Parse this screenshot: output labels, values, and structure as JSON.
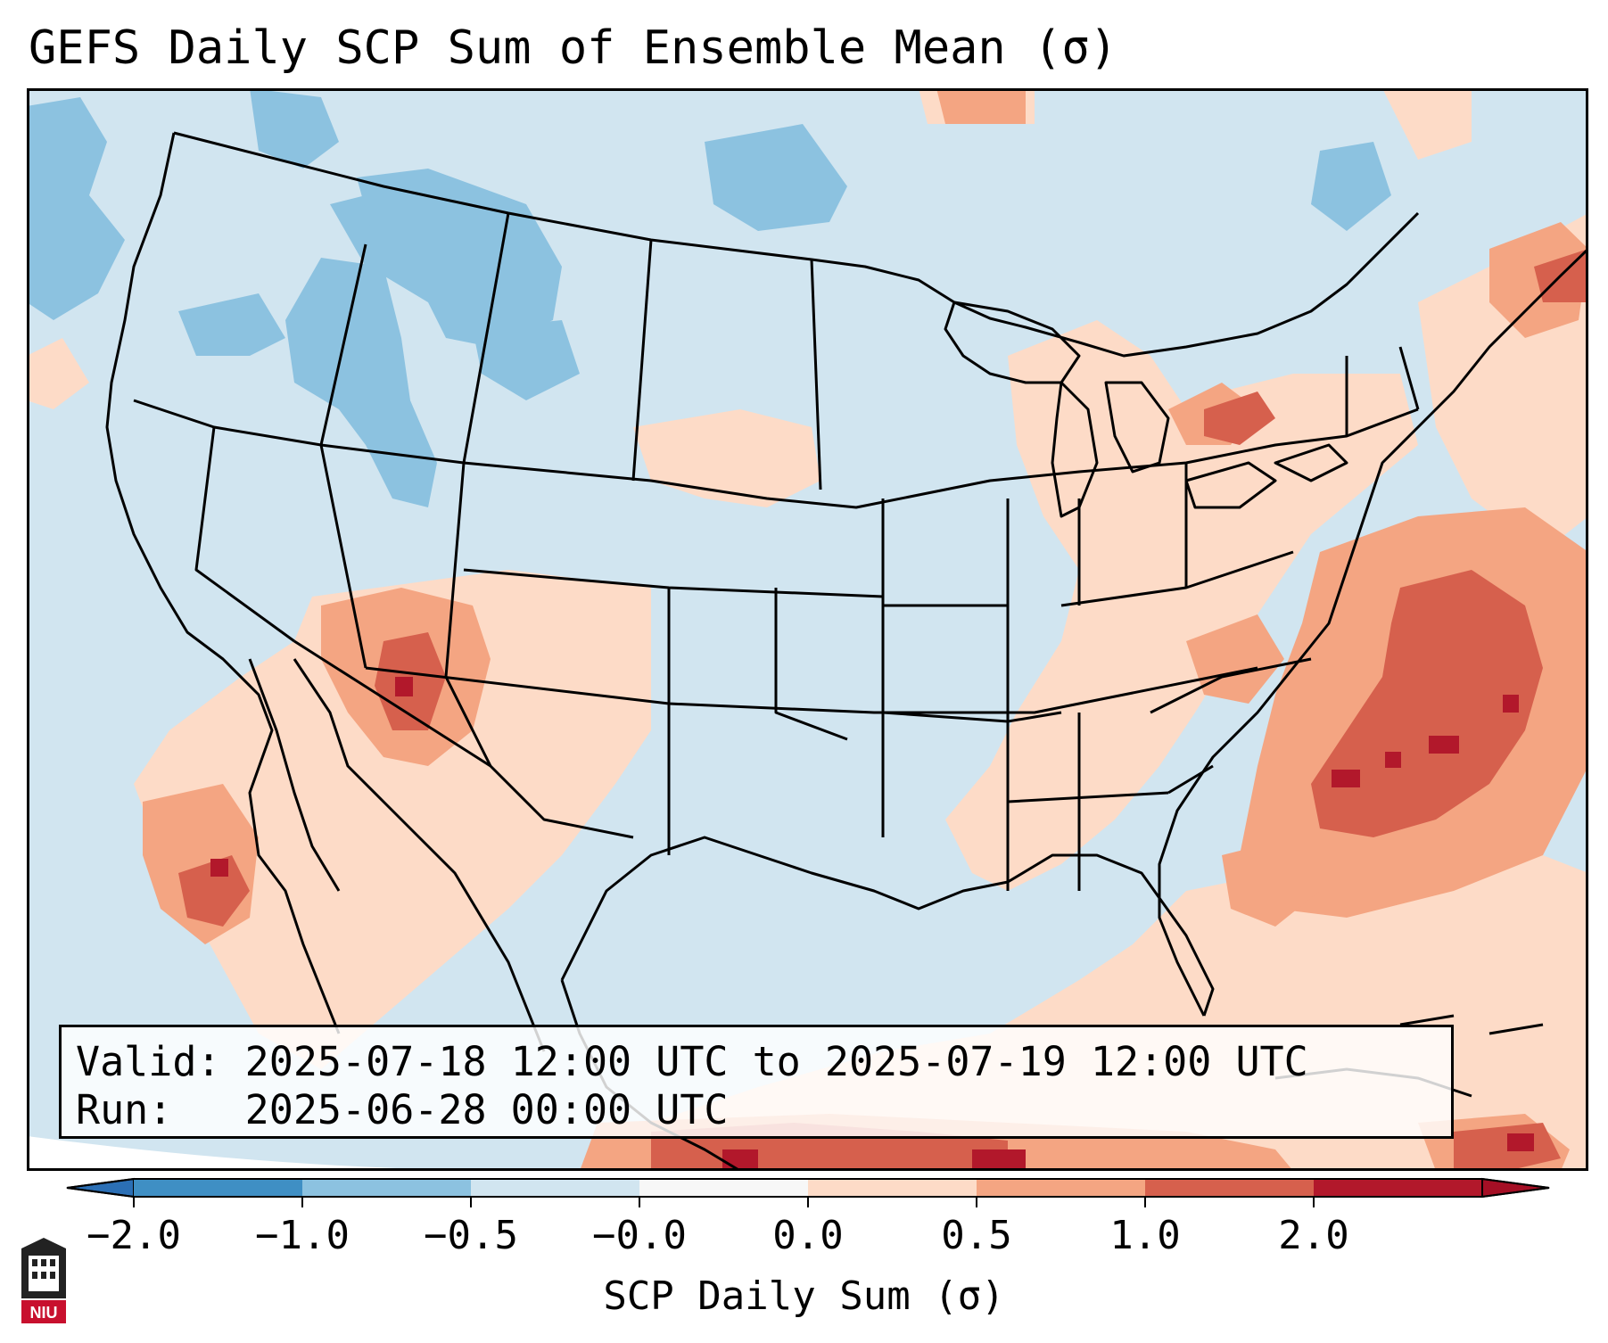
{
  "title": "GEFS Daily SCP Sum of Ensemble Mean (σ)",
  "info": {
    "valid_label": "Valid:",
    "valid_value": "2025-07-18 12:00 UTC to 2025-07-19 12:00 UTC",
    "run_label": "Run:",
    "run_value": "2025-06-28 00:00 UTC"
  },
  "colorbar": {
    "label": "SCP Daily Sum (σ)",
    "ticks": [
      "−2.0",
      "−1.0",
      "−0.5",
      "−0.0",
      "0.0",
      "0.5",
      "1.0",
      "2.0"
    ],
    "colors": [
      "#3f8fc4",
      "#8cc2e0",
      "#d1e5f0",
      "#f7f7f7",
      "#fddbc7",
      "#f4a582",
      "#d6604d",
      "#b2182b"
    ],
    "under_color": "#2b6fb5",
    "over_color": "#a50f25"
  },
  "map": {
    "background_color": "#d1e5f0",
    "ocean_color": "#d1e5f0",
    "anomaly_regions": [
      {
        "name": "southwest-positive",
        "category": "0.0 to 0.5",
        "color": "#fddbc7"
      },
      {
        "name": "four-corners-positive",
        "category": "0.5 to 1.0",
        "color": "#f4a582"
      },
      {
        "name": "atlantic-positive",
        "category": "1.0 to 2.0",
        "color": "#d6604d"
      },
      {
        "name": "northwest-negative",
        "category": "-1.0 to -0.5",
        "color": "#8cc2e0"
      }
    ]
  },
  "logo_text": "NIU"
}
